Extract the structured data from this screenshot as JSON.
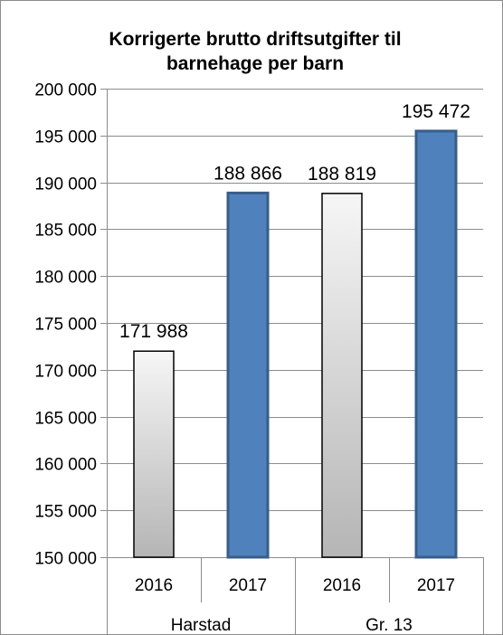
{
  "chart_data": {
    "type": "bar",
    "title": [
      "Korrigerte brutto driftsutgifter til",
      "barnehage per barn"
    ],
    "groups": [
      {
        "name": "Harstad",
        "categories": [
          "2016",
          "2017"
        ]
      },
      {
        "name": "Gr. 13",
        "categories": [
          "2016",
          "2017"
        ]
      }
    ],
    "bars": [
      {
        "category": "2016",
        "group": "Harstad",
        "value": 171988,
        "label": "171 988",
        "color": "gray"
      },
      {
        "category": "2017",
        "group": "Harstad",
        "value": 188866,
        "label": "188 866",
        "color": "#4f81bd"
      },
      {
        "category": "2016",
        "group": "Gr. 13",
        "value": 188819,
        "label": "188 819",
        "color": "gray"
      },
      {
        "category": "2017",
        "group": "Gr. 13",
        "value": 195472,
        "label": "195 472",
        "color": "#4f81bd"
      }
    ],
    "ylim": [
      150000,
      200000
    ],
    "yticks": [
      150000,
      155000,
      160000,
      165000,
      170000,
      175000,
      180000,
      185000,
      190000,
      195000,
      200000
    ],
    "ytick_labels": [
      "150 000",
      "155 000",
      "160 000",
      "165 000",
      "170 000",
      "175 000",
      "180 000",
      "185 000",
      "190 000",
      "195 000",
      "200 000"
    ],
    "grid": true,
    "legend": "none"
  }
}
